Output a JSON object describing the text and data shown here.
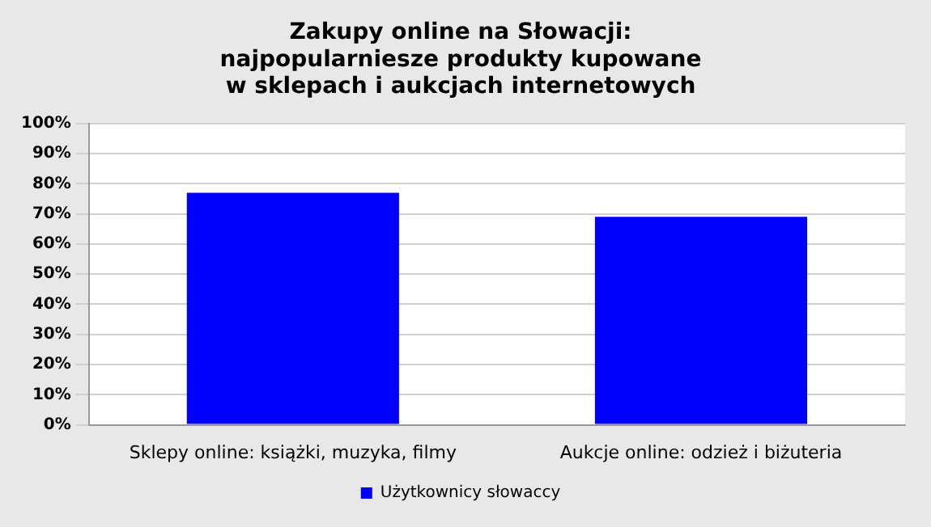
{
  "chart_data": {
    "type": "bar",
    "title": "Zakupy online na Słowacji:\nnajpopularniesze produkty kupowane\nw sklepach i aukcjach internetowych",
    "categories": [
      "Sklepy online: książki, muzyka, filmy",
      "Aukcje online: odzież i biżuteria"
    ],
    "series": [
      {
        "name": "Użytkownicy słowaccy",
        "color": "#0000ff",
        "values": [
          77,
          69
        ]
      }
    ],
    "ylim": [
      0,
      100
    ],
    "yticks": [
      {
        "value": 0,
        "label": "0%"
      },
      {
        "value": 10,
        "label": "10%"
      },
      {
        "value": 20,
        "label": "20%"
      },
      {
        "value": 30,
        "label": "30%"
      },
      {
        "value": 40,
        "label": "40%"
      },
      {
        "value": 50,
        "label": "50%"
      },
      {
        "value": 60,
        "label": "60%"
      },
      {
        "value": 70,
        "label": "70%"
      },
      {
        "value": 80,
        "label": "80%"
      },
      {
        "value": 90,
        "label": "90%"
      },
      {
        "value": 100,
        "label": "100%"
      }
    ],
    "grid": "y",
    "legend": "bottom"
  }
}
